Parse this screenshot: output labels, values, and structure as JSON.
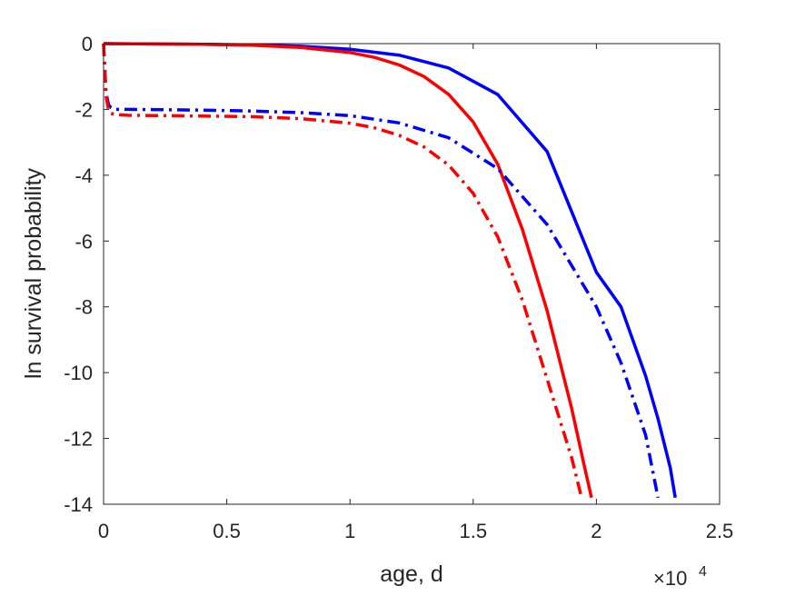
{
  "chart_data": {
    "type": "line",
    "xlabel": "age, d",
    "ylabel": "ln survival probability",
    "xlim": [
      0,
      25000
    ],
    "ylim": [
      -14,
      0
    ],
    "x_ticks": [
      0,
      5000,
      10000,
      15000,
      20000,
      25000
    ],
    "x_tick_labels": [
      "0",
      "0.5",
      "1",
      "1.5",
      "2",
      "2.5"
    ],
    "x_exponent": {
      "base": "×10",
      "power": "4"
    },
    "y_ticks": [
      0,
      -2,
      -4,
      -6,
      -8,
      -10,
      -12,
      -14
    ],
    "y_tick_labels": [
      "0",
      "-2",
      "-4",
      "-6",
      "-8",
      "-10",
      "-12",
      "-14"
    ],
    "grid": false,
    "legend": "none",
    "series": [
      {
        "color": "#0000ff",
        "style": "solid",
        "x": [
          0,
          2000,
          4000,
          6000,
          8000,
          10000,
          12000,
          14000,
          16000,
          18000,
          20000,
          21000,
          22000,
          22500,
          23000,
          23200
        ],
        "y": [
          0,
          -0.01,
          -0.02,
          -0.04,
          -0.08,
          -0.17,
          -0.35,
          -0.74,
          -1.55,
          -3.28,
          -6.95,
          -8.0,
          -10.1,
          -11.4,
          -12.9,
          -13.8
        ]
      },
      {
        "color": "#ff0000",
        "style": "solid",
        "x": [
          0,
          2000,
          4000,
          6000,
          8000,
          10000,
          11000,
          12000,
          13000,
          14000,
          15000,
          16000,
          17000,
          18000,
          19000,
          19500,
          19800
        ],
        "y": [
          0,
          -0.01,
          -0.02,
          -0.05,
          -0.12,
          -0.27,
          -0.42,
          -0.65,
          -1.0,
          -1.54,
          -2.38,
          -3.67,
          -5.65,
          -8.12,
          -11.1,
          -12.8,
          -13.8
        ]
      },
      {
        "color": "#0000ff",
        "style": "dashdot",
        "x": [
          0,
          100,
          200,
          300,
          500,
          1000,
          4000,
          6000,
          8000,
          10000,
          12000,
          14000,
          16000,
          18000,
          20000,
          21000,
          22000,
          22500
        ],
        "y": [
          0,
          -1.5,
          -1.85,
          -1.95,
          -2.0,
          -2.0,
          -2.02,
          -2.05,
          -2.1,
          -2.19,
          -2.41,
          -2.86,
          -3.8,
          -5.5,
          -8.0,
          -9.7,
          -11.9,
          -13.8
        ]
      },
      {
        "color": "#ff0000",
        "style": "dashdot",
        "x": [
          0,
          100,
          200,
          300,
          500,
          1000,
          4000,
          6000,
          8000,
          10000,
          11000,
          12000,
          13000,
          14000,
          15000,
          16000,
          17000,
          18000,
          19000,
          19400
        ],
        "y": [
          0,
          -1.6,
          -2.0,
          -2.12,
          -2.16,
          -2.18,
          -2.2,
          -2.22,
          -2.28,
          -2.42,
          -2.56,
          -2.79,
          -3.14,
          -3.69,
          -4.55,
          -5.88,
          -7.8,
          -10.2,
          -12.6,
          -13.8
        ]
      }
    ]
  }
}
